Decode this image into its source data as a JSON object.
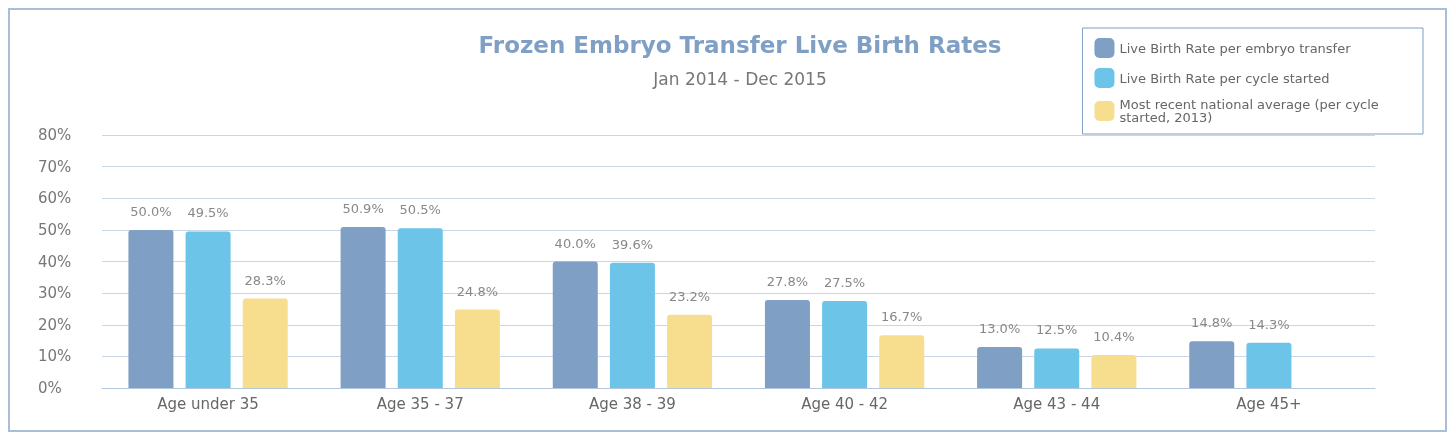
{
  "chart_data": {
    "type": "bar",
    "title": "Frozen Embryo Transfer Live Birth Rates",
    "subtitle": "Jan 2014 - Dec 2015",
    "categories": [
      "Age under 35",
      "Age 35 - 37",
      "Age 38 - 39",
      "Age 40 - 42",
      "Age 43 - 44",
      "Age 45+"
    ],
    "series": [
      {
        "name": "Live Birth Rate per embryo transfer",
        "color": "#7f9fc4",
        "values": [
          50.0,
          50.9,
          40.0,
          27.8,
          13.0,
          14.8
        ],
        "value_labels": [
          "50.0%",
          "50.9%",
          "40.0%",
          "27.8%",
          "13.0%",
          "14.8%"
        ]
      },
      {
        "name": "Live Birth Rate per cycle started",
        "color": "#6cc4e8",
        "values": [
          49.5,
          50.5,
          39.6,
          27.5,
          12.5,
          14.3
        ],
        "value_labels": [
          "49.5%",
          "50.5%",
          "39.6%",
          "27.5%",
          "12.5%",
          "14.3%"
        ]
      },
      {
        "name": "Most recent national average (per cycle started, 2013)",
        "color": "#f7de8e",
        "values": [
          28.3,
          24.8,
          23.2,
          16.7,
          10.4,
          null
        ],
        "value_labels": [
          "28.3%",
          "24.8%",
          "23.2%",
          "16.7%",
          "10.4%",
          null
        ]
      }
    ],
    "ylim": [
      0,
      80
    ],
    "yticks": [
      {
        "value": 0,
        "label": "0%"
      },
      {
        "value": 10,
        "label": "10%"
      },
      {
        "value": 20,
        "label": "20%"
      },
      {
        "value": 30,
        "label": "30%"
      },
      {
        "value": 40,
        "label": "40%"
      },
      {
        "value": 50,
        "label": "50%"
      },
      {
        "value": 60,
        "label": "60%"
      },
      {
        "value": 70,
        "label": "70%"
      },
      {
        "value": 80,
        "label": "80%"
      }
    ],
    "grid": "y",
    "legend": "top right"
  }
}
